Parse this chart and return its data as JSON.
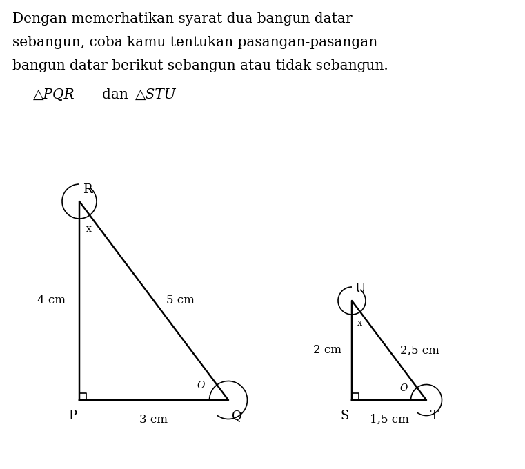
{
  "title_line1": "Dengan memerhatikan syarat dua bangun datar",
  "title_line2": "sebangun, coba kamu tentukan pasangan-pasangan",
  "title_line3": "bangun datar berikut sebangun atau tidak sebangun.",
  "subtitle_normal": "dan",
  "subtitle_tri1": "△PQR",
  "subtitle_tri2": "△STU",
  "bg_color": "#ffffff",
  "font_color": "#000000",
  "line_color": "#000000",
  "line_width": 1.8,
  "tri1": {
    "label_P": "P",
    "label_Q": "Q",
    "label_R": "R",
    "side_PQ": "3 cm",
    "side_PR": "4 cm",
    "side_QR": "5 cm",
    "angle_R_label": "x",
    "angle_Q_label": "O"
  },
  "tri2": {
    "label_S": "S",
    "label_T": "T",
    "label_U": "U",
    "side_ST": "1,5 cm",
    "side_SU": "2 cm",
    "side_UT": "2,5 cm",
    "angle_U_label": "x",
    "angle_T_label": "O"
  }
}
